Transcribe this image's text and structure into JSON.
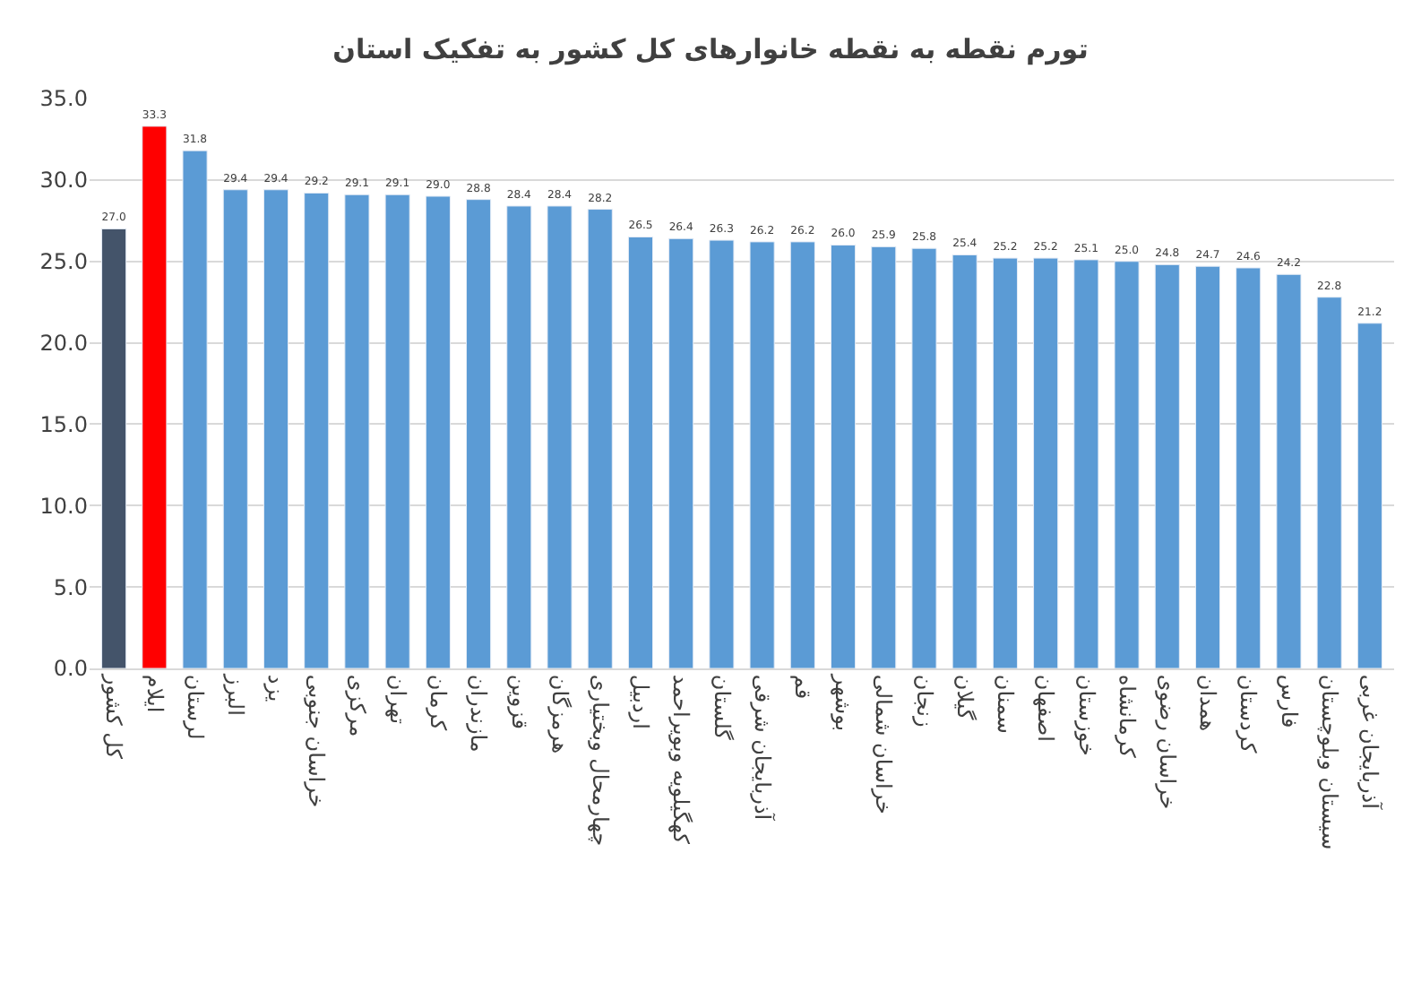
{
  "chart_data": {
    "type": "bar",
    "title": "تورم نقطه به نقطه خانوارهای کل کشور به تفکیک استان",
    "categories": [
      "کل کشور",
      "ایلام",
      "لرستان",
      "البرز",
      "یزد",
      "خراسان جنوبی",
      "مرکزی",
      "تهران",
      "کرمان",
      "مازندران",
      "قزوین",
      "هرمزگان",
      "چهارمحال وبختیاری",
      "اردبیل",
      "کهگیلویه وبویراحمد",
      "گلستان",
      "آذربایجان شرقی",
      "قم",
      "بوشهر",
      "خراسان شمالی",
      "زنجان",
      "گیلان",
      "سمنان",
      "اصفهان",
      "خوزستان",
      "کرمانشاه",
      "خراسان رضوی",
      "همدان",
      "کردستان",
      "فارس",
      "سیستان وبلوچستان",
      "آذربایجان غربی"
    ],
    "values": [
      27.0,
      33.3,
      31.8,
      29.4,
      29.4,
      29.2,
      29.1,
      29.1,
      29.0,
      28.8,
      28.4,
      28.4,
      28.2,
      26.5,
      26.4,
      26.3,
      26.2,
      26.2,
      26.0,
      25.9,
      25.8,
      25.4,
      25.2,
      25.2,
      25.1,
      25.0,
      24.8,
      24.7,
      24.6,
      24.2,
      22.8,
      21.2
    ],
    "value_labels": [
      "27.0",
      "33.3",
      "31.8",
      "29.4",
      "29.4",
      "29.2",
      "29.1",
      "29.1",
      "29.0",
      "28.8",
      "28.4",
      "28.4",
      "28.2",
      "26.5",
      "26.4",
      "26.3",
      "26.2",
      "26.2",
      "26.0",
      "25.9",
      "25.8",
      "25.4",
      "25.2",
      "25.2",
      "25.1",
      "25.0",
      "24.8",
      "24.7",
      "24.6",
      "24.2",
      "22.8",
      "21.2"
    ],
    "colors": [
      "#44546a",
      "#ff0000",
      "#5b9bd5",
      "#5b9bd5",
      "#5b9bd5",
      "#5b9bd5",
      "#5b9bd5",
      "#5b9bd5",
      "#5b9bd5",
      "#5b9bd5",
      "#5b9bd5",
      "#5b9bd5",
      "#5b9bd5",
      "#5b9bd5",
      "#5b9bd5",
      "#5b9bd5",
      "#5b9bd5",
      "#5b9bd5",
      "#5b9bd5",
      "#5b9bd5",
      "#5b9bd5",
      "#5b9bd5",
      "#5b9bd5",
      "#5b9bd5",
      "#5b9bd5",
      "#5b9bd5",
      "#5b9bd5",
      "#5b9bd5",
      "#5b9bd5",
      "#5b9bd5",
      "#5b9bd5",
      "#5b9bd5"
    ],
    "ylim": [
      0,
      35
    ],
    "yticks": [
      {
        "value": 0,
        "label": "0.0"
      },
      {
        "value": 5,
        "label": "5.0"
      },
      {
        "value": 10,
        "label": "10.0"
      },
      {
        "value": 15,
        "label": "15.0"
      },
      {
        "value": 20,
        "label": "20.0"
      },
      {
        "value": 25,
        "label": "25.0"
      },
      {
        "value": 30,
        "label": "30.0"
      },
      {
        "value": 35,
        "label": "35.0"
      }
    ],
    "grid": "y",
    "legend": false
  }
}
